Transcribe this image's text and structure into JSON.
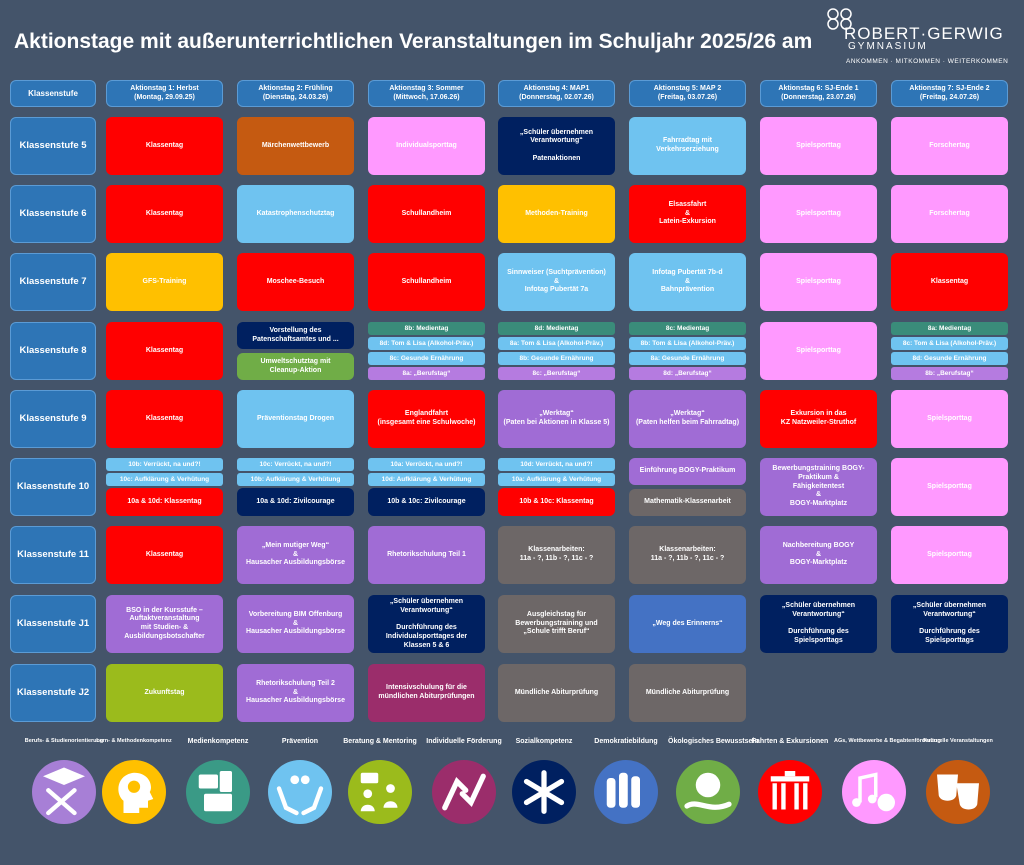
{
  "title": "Aktionstage mit außerunterrichtlichen Veranstaltungen im Schuljahr 2025/26 am",
  "logo": {
    "name": "ROBERT·GERWIG",
    "sub": "GYMNASIUM",
    "tagline": "ANKOMMEN · MITKOMMEN · WEITERKOMMEN"
  },
  "colors": {
    "background": "#44546a",
    "header": "#2e75b6",
    "red": "#ff0000",
    "orange_brown": "#c55a11",
    "pink": "#ff99ff",
    "navy": "#002060",
    "light_blue": "#6fc3f0",
    "gold": "#ffc000",
    "green": "#70ad47",
    "teal": "#3a8c7a",
    "lilac": "#b57be0",
    "purple": "#a06cd5",
    "gray": "#6d6767",
    "blue": "#4472c4",
    "lime": "#9bbb1c",
    "plum": "#9b2d6b"
  },
  "headers": [
    "Klassenstufe",
    "Aktionstag 1: Herbst\n(Montag, 29.09.25)",
    "Aktionstag 2: Frühling\n(Dienstag, 24.03.26)",
    "Aktionstag 3: Sommer\n(Mittwoch, 17.06.26)",
    "Aktionstag 4: MAP1\n(Donnerstag, 02.07.26)",
    "Aktionstag 5: MAP 2\n(Freitag, 03.07.26)",
    "Aktionstag 6: SJ-Ende 1\n(Donnerstag, 23.07.26)",
    "Aktionstag 7: SJ-Ende 2\n(Freitag, 24.07.26)"
  ],
  "rows": [
    {
      "label": "Klassenstufe 5",
      "cells": [
        {
          "text": "Klassentag",
          "color": "red"
        },
        {
          "text": "Märchenwettbewerb",
          "color": "orange_brown"
        },
        {
          "text": "Individualsporttag",
          "color": "pink"
        },
        {
          "text": "„Schüler übernehmen\nVerantwortung“\n\nPatenaktionen",
          "color": "navy"
        },
        {
          "text": "Fahrradtag mit\nVerkehrserziehung",
          "color": "light_blue"
        },
        {
          "text": "Spielsporttag",
          "color": "pink"
        },
        {
          "text": "Forschertag",
          "color": "pink"
        }
      ]
    },
    {
      "label": "Klassenstufe 6",
      "cells": [
        {
          "text": "Klassentag",
          "color": "red"
        },
        {
          "text": "Katastrophenschutztag",
          "color": "light_blue"
        },
        {
          "text": "Schullandheim",
          "color": "red"
        },
        {
          "text": "Methoden-Training",
          "color": "gold"
        },
        {
          "text": "Elsassfahrt\n&\nLatein-Exkursion",
          "color": "red"
        },
        {
          "text": "Spielsporttag",
          "color": "pink"
        },
        {
          "text": "Forschertag",
          "color": "pink"
        }
      ]
    },
    {
      "label": "Klassenstufe 7",
      "cells": [
        {
          "text": "GFS-Training",
          "color": "gold"
        },
        {
          "text": "Moschee-Besuch",
          "color": "red"
        },
        {
          "text": "Schullandheim",
          "color": "red"
        },
        {
          "text": "Sinnweiser (Suchtprävention)\n&\nInfotag Pubertät 7a",
          "color": "light_blue"
        },
        {
          "text": "Infotag Pubertät 7b-d\n&\nBahnprävention",
          "color": "light_blue"
        },
        {
          "text": "Spielsporttag",
          "color": "pink"
        },
        {
          "text": "Klassentag",
          "color": "red"
        }
      ]
    },
    {
      "label": "Klassenstufe 8",
      "cells": [
        {
          "text": "Klassentag",
          "color": "red"
        },
        {
          "split": [
            {
              "text": "Vorstellung des\nPatenschaftsamtes und ...",
              "color": "navy"
            },
            {
              "text": "Umweltschutztag mit\nCleanup-Aktion",
              "color": "green"
            }
          ]
        },
        {
          "list": [
            {
              "text": "8b: Medientag",
              "color": "teal"
            },
            {
              "text": "8d: Tom & Lisa (Alkohol-Präv.)",
              "color": "light_blue"
            },
            {
              "text": "8c: Gesunde Ernährung",
              "color": "light_blue"
            },
            {
              "text": "8a: „Berufstag“",
              "color": "lilac"
            }
          ]
        },
        {
          "list": [
            {
              "text": "8d: Medientag",
              "color": "teal"
            },
            {
              "text": "8a: Tom & Lisa (Alkohol-Präv.)",
              "color": "light_blue"
            },
            {
              "text": "8b: Gesunde Ernährung",
              "color": "light_blue"
            },
            {
              "text": "8c: „Berufstag“",
              "color": "lilac"
            }
          ]
        },
        {
          "list": [
            {
              "text": "8c: Medientag",
              "color": "teal"
            },
            {
              "text": "8b: Tom & Lisa (Alkohol-Präv.)",
              "color": "light_blue"
            },
            {
              "text": "8a: Gesunde Ernährung",
              "color": "light_blue"
            },
            {
              "text": "8d: „Berufstag“",
              "color": "lilac"
            }
          ]
        },
        {
          "text": "Spielsporttag",
          "color": "pink"
        },
        {
          "list": [
            {
              "text": "8a: Medientag",
              "color": "teal"
            },
            {
              "text": "8c: Tom & Lisa (Alkohol-Präv.)",
              "color": "light_blue"
            },
            {
              "text": "8d: Gesunde Ernährung",
              "color": "light_blue"
            },
            {
              "text": "8b: „Berufstag“",
              "color": "lilac"
            }
          ]
        }
      ]
    },
    {
      "label": "Klassenstufe 9",
      "cells": [
        {
          "text": "Klassentag",
          "color": "red"
        },
        {
          "text": "Präventionstag Drogen",
          "color": "light_blue"
        },
        {
          "text": "Englandfahrt\n(insgesamt eine Schulwoche)",
          "color": "red"
        },
        {
          "text": "„Werktag“\n(Paten bei Aktionen in Klasse 5)",
          "color": "purple"
        },
        {
          "text": "„Werktag“\n(Paten helfen beim Fahrradtag)",
          "color": "purple"
        },
        {
          "text": "Exkursion in das\nKZ Natzweiler-Struthof",
          "color": "red"
        },
        {
          "text": "Spielsporttag",
          "color": "pink"
        }
      ]
    },
    {
      "label": "Klassenstufe 10",
      "cells": [
        {
          "stack": [
            {
              "text": "10b: Verrückt, na und?!",
              "color": "light_blue"
            },
            {
              "text": "10c: Aufklärung & Verhütung",
              "color": "light_blue"
            },
            {
              "text": "10a & 10d: Klassentag",
              "color": "red"
            }
          ]
        },
        {
          "stack": [
            {
              "text": "10c: Verrückt, na und?!",
              "color": "light_blue"
            },
            {
              "text": "10b: Aufklärung & Verhütung",
              "color": "light_blue"
            },
            {
              "text": "10a & 10d: Zivilcourage",
              "color": "navy"
            }
          ]
        },
        {
          "stack": [
            {
              "text": "10a: Verrückt, na und?!",
              "color": "light_blue"
            },
            {
              "text": "10d: Aufklärung & Verhütung",
              "color": "light_blue"
            },
            {
              "text": "10b & 10c: Zivilcourage",
              "color": "navy"
            }
          ]
        },
        {
          "stack": [
            {
              "text": "10d: Verrückt, na und?!",
              "color": "light_blue"
            },
            {
              "text": "10a: Aufklärung & Verhütung",
              "color": "light_blue"
            },
            {
              "text": "10b & 10c: Klassentag",
              "color": "red"
            }
          ]
        },
        {
          "split": [
            {
              "text": "Einführung BOGY-Praktikum",
              "color": "purple"
            },
            {
              "text": "Mathematik-Klassenarbeit",
              "color": "gray"
            }
          ]
        },
        {
          "text": "Bewerbungstraining BOGY-\nPraktikum &\nFähigkeitentest\n&\nBOGY-Marktplatz",
          "color": "purple"
        },
        {
          "text": "Spielsporttag",
          "color": "pink"
        }
      ]
    },
    {
      "label": "Klassenstufe 11",
      "cells": [
        {
          "text": "Klassentag",
          "color": "red"
        },
        {
          "text": "„Mein mutiger Weg“\n&\nHausacher Ausbildungsbörse",
          "color": "purple"
        },
        {
          "text": "Rhetorikschulung Teil 1",
          "color": "purple"
        },
        {
          "text": "Klassenarbeiten:\n11a - ?,  11b - ?,  11c - ?",
          "color": "gray"
        },
        {
          "text": "Klassenarbeiten:\n11a - ?,  11b - ?,  11c - ?",
          "color": "gray"
        },
        {
          "text": "Nachbereitung BOGY\n&\nBOGY-Marktplatz",
          "color": "purple"
        },
        {
          "text": "Spielsporttag",
          "color": "pink"
        }
      ]
    },
    {
      "label": "Klassenstufe J1",
      "cells": [
        {
          "text": "BSO in der Kursstufe –\nAuftaktveranstaltung\nmit Studien- &\nAusbildungsbotschafter",
          "color": "purple"
        },
        {
          "text": "Vorbereitung BIM Offenburg\n&\nHausacher Ausbildungsbörse",
          "color": "purple"
        },
        {
          "text": "„Schüler übernehmen\nVerantwortung“\n\nDurchführung des\nIndividualsporttages der\nKlassen 5 & 6",
          "color": "navy"
        },
        {
          "text": "Ausgleichstag für\nBewerbungstraining und\n„Schule trifft Beruf“",
          "color": "gray"
        },
        {
          "text": "„Weg des Erinnerns“",
          "color": "blue"
        },
        {
          "text": "„Schüler übernehmen\nVerantwortung“\n\nDurchführung des\nSpielsporttags",
          "color": "navy"
        },
        {
          "text": "„Schüler übernehmen\nVerantwortung“\n\nDurchführung des\nSpielsporttags",
          "color": "navy"
        }
      ]
    },
    {
      "label": "Klassenstufe J2",
      "cells": [
        {
          "text": "Zukunftstag",
          "color": "lime"
        },
        {
          "text": "Rhetorikschulung Teil 2\n&\nHausacher Ausbildungsbörse",
          "color": "purple"
        },
        {
          "text": "Intensivschulung für die\nmündlichen Abiturprüfungen",
          "color": "plum"
        },
        {
          "text": "Mündliche Abiturprüfung",
          "color": "gray"
        },
        {
          "text": "Mündliche Abiturprüfung",
          "color": "gray"
        },
        null,
        null
      ]
    }
  ],
  "competencies": [
    {
      "label": "Berufs- & Studienorientierung",
      "icon": "graduation-tools-icon",
      "color": "#a77fd6"
    },
    {
      "label": "Lern- & Methodenkompetenz",
      "icon": "brain-head-icon",
      "color": "#ffc000"
    },
    {
      "label": "Medienkompetenz",
      "icon": "media-devices-icon",
      "color": "#3a9a86"
    },
    {
      "label": "Prävention",
      "icon": "protecting-hands-icon",
      "color": "#6fc3f0"
    },
    {
      "label": "Beratung & Mentoring",
      "icon": "mentoring-people-icon",
      "color": "#9bbb1c"
    },
    {
      "label": "Individuelle Förderung",
      "icon": "helping-hands-icon",
      "color": "#9b2d6b"
    },
    {
      "label": "Sozialkompetenz",
      "icon": "joined-hands-icon",
      "color": "#002060"
    },
    {
      "label": "Demokratiebildung",
      "icon": "raised-hands-icon",
      "color": "#4472c4"
    },
    {
      "label": "Ökologisches Bewusstsein",
      "icon": "globe-hand-icon",
      "color": "#70ad47"
    },
    {
      "label": "Fahrten & Exkursionen",
      "icon": "brandenburg-gate-icon",
      "color": "#ff0000"
    },
    {
      "label": "AGs, Wettbewerbe & Begabtenförderung",
      "icon": "music-ball-icon",
      "color": "#ff99ff"
    },
    {
      "label": "Kulturelle Veranstaltungen",
      "icon": "theater-masks-icon",
      "color": "#c55a11"
    }
  ]
}
